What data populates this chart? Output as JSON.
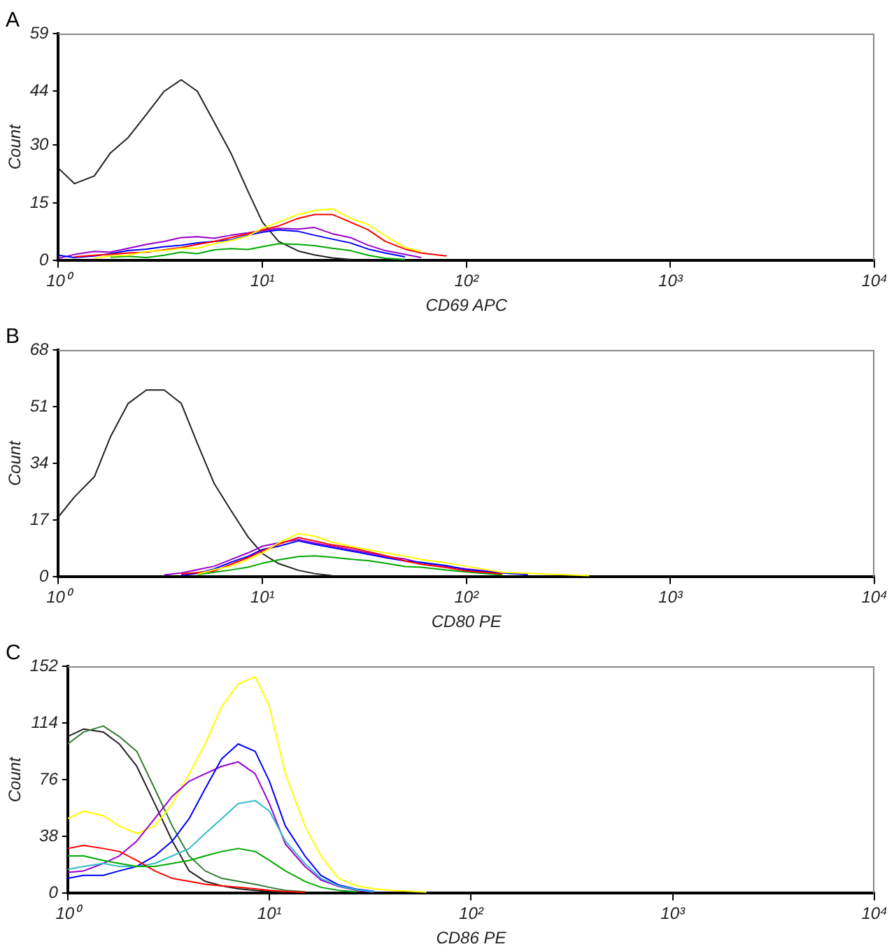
{
  "chart_data": [
    {
      "type": "line",
      "title": "A",
      "xlabel": "CD69 APC",
      "ylabel": "Count",
      "log": "x",
      "xlim": [
        1,
        10000
      ],
      "xticks": [
        {
          "value": 1,
          "label": "10⁰"
        },
        {
          "value": 10,
          "label": "10¹"
        },
        {
          "value": 100,
          "label": "10²"
        },
        {
          "value": 1000,
          "label": "10³"
        },
        {
          "value": 10000,
          "label": "10⁴"
        }
      ],
      "ylim": [
        0,
        59
      ],
      "yticks": [
        0,
        15,
        30,
        44,
        59
      ],
      "grid": false,
      "legend": false,
      "marker": "none",
      "line_style": "solid",
      "series": [
        {
          "color": "#ffff00",
          "x": [
            1.5,
            1.8,
            2.2,
            2.7,
            3.3,
            4,
            4.8,
            5.8,
            7,
            8.5,
            10,
            12,
            15,
            18,
            22,
            27,
            33,
            40,
            50,
            60
          ],
          "values": [
            0.6,
            1.2,
            1.4,
            2.4,
            2.6,
            3.2,
            3.2,
            4.4,
            5.2,
            6.4,
            8.4,
            10,
            12,
            13,
            13.5,
            11,
            9.4,
            6.4,
            3.4,
            2.4
          ]
        },
        {
          "color": "#ff0000",
          "x": [
            1.2,
            1.5,
            1.8,
            2.2,
            2.7,
            3.3,
            4,
            4.8,
            5.8,
            7,
            8.5,
            10,
            12,
            15,
            18,
            22,
            27,
            33,
            40,
            50,
            60,
            80
          ],
          "values": [
            1,
            1.4,
            1.6,
            2,
            2.2,
            2.8,
            3.4,
            4.2,
            5,
            6,
            7,
            8,
            9,
            11,
            12,
            12,
            10,
            8,
            5,
            3,
            2,
            1.2
          ]
        },
        {
          "color": "#0000ff",
          "x": [
            1,
            1.2,
            1.5,
            1.8,
            2.2,
            2.7,
            3.3,
            4,
            4.8,
            5.8,
            7,
            8.5,
            10,
            12,
            15,
            18,
            22,
            27,
            33,
            40,
            50
          ],
          "values": [
            1.4,
            0.8,
            1.2,
            1.8,
            2.6,
            3,
            3.6,
            4,
            4.6,
            5,
            5.4,
            6.6,
            7.4,
            8,
            7.6,
            6.6,
            5.6,
            4.6,
            3,
            2,
            1
          ]
        },
        {
          "color": "#9900cc",
          "x": [
            1,
            1.2,
            1.5,
            1.8,
            2.2,
            2.7,
            3.3,
            4,
            4.8,
            5.8,
            7,
            8.5,
            10,
            12,
            15,
            18,
            22,
            27,
            33,
            40,
            50,
            60
          ],
          "values": [
            0.6,
            1.6,
            2.4,
            2.2,
            3.2,
            4.2,
            5,
            6,
            6.2,
            5.8,
            6.6,
            7.2,
            7.8,
            8.4,
            8.2,
            8.6,
            7,
            6,
            4,
            2.6,
            1.6,
            0.8
          ]
        },
        {
          "color": "#00aa00",
          "x": [
            1.8,
            2.2,
            2.7,
            3.3,
            4,
            4.8,
            5.8,
            7,
            8.5,
            10,
            12,
            15,
            18,
            22,
            27,
            33,
            40,
            50
          ],
          "values": [
            0.9,
            1.1,
            0.8,
            1.4,
            2.2,
            1.8,
            2.8,
            3.1,
            2.9,
            3.6,
            4.4,
            4.2,
            3.9,
            3.2,
            2.6,
            1.4,
            0.6,
            0.3
          ]
        },
        {
          "color": "#222222",
          "x": [
            1,
            1.2,
            1.5,
            1.8,
            2.2,
            2.7,
            3.3,
            4,
            4.8,
            5.8,
            7,
            8.5,
            10,
            12,
            15,
            18,
            22,
            27
          ],
          "values": [
            24,
            20,
            22,
            28,
            32,
            38,
            44,
            47,
            44,
            36,
            28,
            18,
            10,
            5,
            2.5,
            1.5,
            0.7,
            0.3
          ]
        }
      ]
    },
    {
      "type": "line",
      "title": "B",
      "xlabel": "CD80 PE",
      "ylabel": "Count",
      "log": "x",
      "xlim": [
        1,
        10000
      ],
      "xticks": [
        {
          "value": 1,
          "label": "10⁰"
        },
        {
          "value": 10,
          "label": "10¹"
        },
        {
          "value": 100,
          "label": "10²"
        },
        {
          "value": 1000,
          "label": "10³"
        },
        {
          "value": 10000,
          "label": "10⁴"
        }
      ],
      "ylim": [
        0,
        68
      ],
      "yticks": [
        0,
        17,
        34,
        51,
        68
      ],
      "grid": false,
      "legend": false,
      "marker": "none",
      "line_style": "solid",
      "series": [
        {
          "color": "#ffff00",
          "x": [
            4.8,
            5.8,
            7,
            8.5,
            10,
            12,
            15,
            18,
            22,
            27,
            33,
            40,
            50,
            60,
            80,
            100,
            150,
            200,
            400
          ],
          "values": [
            0.8,
            2.2,
            3.2,
            5.2,
            7.2,
            10.2,
            13,
            12.2,
            10.4,
            9.2,
            8.2,
            7.2,
            6.2,
            5.2,
            4.2,
            3.2,
            1.4,
            1.1,
            0.4
          ]
        },
        {
          "color": "#ff0000",
          "x": [
            4,
            4.8,
            5.8,
            7,
            8.5,
            10,
            12,
            15,
            18,
            22,
            27,
            33,
            40,
            50,
            60,
            80,
            100,
            150
          ],
          "values": [
            0.9,
            1.3,
            1.8,
            3.8,
            5.8,
            7.8,
            9.8,
            11.8,
            10.8,
            9.6,
            8.8,
            7.6,
            6.4,
            4.8,
            3.8,
            2.8,
            1.8,
            0.9
          ]
        },
        {
          "color": "#0000ff",
          "x": [
            4,
            4.8,
            5.8,
            7,
            8.5,
            10,
            12,
            15,
            18,
            22,
            27,
            33,
            40,
            50,
            60,
            80,
            100,
            150,
            200
          ],
          "values": [
            0.5,
            1.1,
            2.4,
            4.4,
            6.2,
            8.2,
            9.2,
            10.8,
            9.8,
            8.8,
            7.8,
            6.8,
            5.8,
            4.8,
            4.4,
            3.4,
            2.2,
            1.2,
            0.7
          ]
        },
        {
          "color": "#9900cc",
          "x": [
            3.3,
            4,
            4.8,
            5.8,
            7,
            8.5,
            10,
            12,
            15,
            18,
            22,
            27,
            33,
            40,
            50,
            60,
            80,
            100,
            150,
            200
          ],
          "values": [
            0.6,
            1.2,
            2.2,
            3.2,
            5.2,
            7.2,
            9.2,
            10.2,
            11.2,
            10.2,
            9.2,
            8.2,
            7.2,
            6.2,
            5.4,
            4.2,
            3.2,
            2.4,
            1.3,
            0.8
          ]
        },
        {
          "color": "#00aa00",
          "x": [
            4.8,
            5.8,
            7,
            8.5,
            10,
            12,
            15,
            18,
            22,
            27,
            33,
            40,
            50,
            60,
            80,
            100,
            150
          ],
          "values": [
            0.7,
            1.4,
            2.1,
            2.9,
            4.1,
            5.1,
            6.1,
            6.3,
            5.9,
            5.3,
            4.9,
            4.1,
            3.1,
            2.9,
            2.1,
            1.5,
            0.6
          ]
        },
        {
          "color": "#222222",
          "x": [
            1,
            1.2,
            1.5,
            1.8,
            2.2,
            2.7,
            3.3,
            4,
            4.8,
            5.8,
            7,
            8.5,
            10,
            12,
            15,
            18,
            22
          ],
          "values": [
            18,
            24,
            30,
            42,
            52,
            56,
            56,
            52,
            40,
            28,
            20,
            12,
            7,
            4,
            2,
            1,
            0.4
          ]
        }
      ]
    },
    {
      "type": "line",
      "title": "C",
      "xlabel": "CD86 PE",
      "ylabel": "Count",
      "log": "x",
      "xlim": [
        1,
        10000
      ],
      "xticks": [
        {
          "value": 1,
          "label": "10⁰"
        },
        {
          "value": 10,
          "label": "10¹"
        },
        {
          "value": 100,
          "label": "10²"
        },
        {
          "value": 1000,
          "label": "10³"
        },
        {
          "value": 10000,
          "label": "10⁴"
        }
      ],
      "ylim": [
        0,
        152
      ],
      "yticks": [
        0,
        38,
        76,
        114,
        152
      ],
      "grid": false,
      "legend": false,
      "marker": "none",
      "line_style": "solid",
      "series": [
        {
          "color": "#00aa00",
          "x": [
            1,
            1.2,
            1.5,
            1.8,
            2.2,
            2.7,
            3.3,
            4,
            4.8,
            5.8,
            7,
            8.5,
            10,
            12,
            15,
            18,
            22,
            27
          ],
          "values": [
            25,
            25,
            22,
            20,
            18,
            18,
            20,
            22,
            25,
            28,
            30,
            28,
            22,
            15,
            8,
            4,
            2,
            1
          ]
        },
        {
          "color": "#ff0000",
          "x": [
            1,
            1.2,
            1.5,
            1.8,
            2.2,
            2.7,
            3.3,
            4,
            4.8,
            5.8,
            7,
            8.5,
            10,
            12,
            15
          ],
          "values": [
            30,
            32,
            30,
            28,
            22,
            15,
            10,
            8,
            6,
            5,
            4,
            3,
            2,
            1.2,
            0.6
          ]
        },
        {
          "color": "#33bbcc",
          "x": [
            1,
            1.2,
            1.5,
            1.8,
            2.2,
            2.7,
            3.3,
            4,
            4.8,
            5.8,
            7,
            8.5,
            10,
            12,
            15,
            18,
            22,
            27,
            33
          ],
          "values": [
            16,
            18,
            20,
            18,
            18,
            20,
            25,
            30,
            40,
            50,
            60,
            62,
            55,
            35,
            20,
            10,
            5,
            2.4,
            1.1
          ]
        },
        {
          "color": "#0000ff",
          "x": [
            1,
            1.2,
            1.5,
            1.8,
            2.2,
            2.7,
            3.3,
            4,
            4.8,
            5.8,
            7,
            8.5,
            10,
            12,
            15,
            18,
            22,
            27,
            33
          ],
          "values": [
            10,
            12,
            12,
            15,
            18,
            25,
            35,
            50,
            70,
            90,
            100,
            95,
            75,
            45,
            25,
            12,
            5.6,
            2.8,
            1.4
          ]
        },
        {
          "color": "#9900cc",
          "x": [
            1,
            1.2,
            1.5,
            1.8,
            2.2,
            2.7,
            3.3,
            4,
            4.8,
            5.8,
            7,
            8.5,
            10,
            12,
            15,
            18,
            22,
            27,
            33
          ],
          "values": [
            14,
            15,
            20,
            25,
            35,
            50,
            65,
            75,
            80,
            85,
            88,
            80,
            60,
            33,
            18,
            9,
            4.6,
            2,
            0.8
          ]
        },
        {
          "color": "#ffff00",
          "x": [
            1,
            1.2,
            1.5,
            1.8,
            2.2,
            2.7,
            3.3,
            4,
            4.8,
            5.8,
            7,
            8.5,
            10,
            12,
            15,
            18,
            22,
            27,
            33,
            40,
            50,
            60
          ],
          "values": [
            50,
            55,
            52,
            45,
            40,
            45,
            60,
            80,
            100,
            125,
            140,
            145,
            125,
            80,
            45,
            25,
            10,
            5,
            3,
            2,
            1.4,
            0.8
          ]
        },
        {
          "color": "#2e7d32",
          "x": [
            1,
            1.2,
            1.5,
            1.8,
            2.2,
            2.7,
            3.3,
            4,
            4.8,
            5.8,
            7,
            8.5,
            10,
            12,
            15
          ],
          "values": [
            100,
            108,
            112,
            105,
            95,
            70,
            45,
            25,
            15,
            10,
            8,
            6,
            4,
            2,
            1
          ]
        },
        {
          "color": "#222222",
          "x": [
            1,
            1.2,
            1.5,
            1.8,
            2.2,
            2.7,
            3.3,
            4,
            4.8,
            5.8,
            7,
            8.5,
            10,
            12
          ],
          "values": [
            105,
            110,
            108,
            100,
            85,
            60,
            35,
            15,
            8,
            5,
            3,
            2,
            1.2,
            0.6
          ]
        }
      ]
    }
  ]
}
